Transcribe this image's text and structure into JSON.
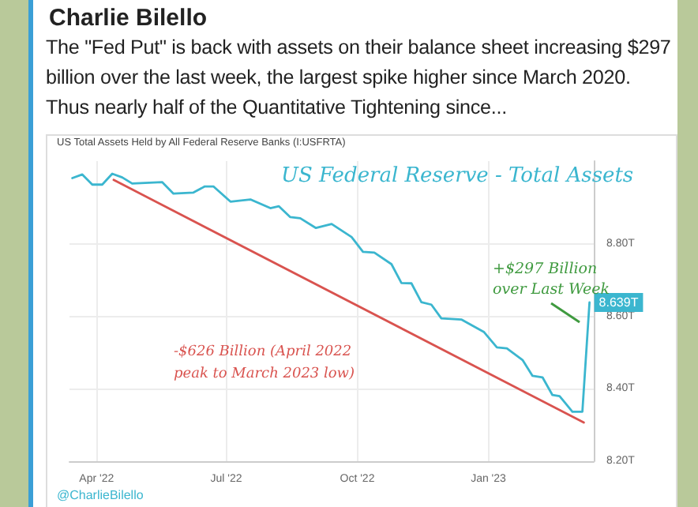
{
  "chart_data": {
    "type": "line",
    "title": "Charlie Bilello",
    "subtitle": "The \"Fed Put\" is back with assets on their balance sheet increasing $297 billion over the last week, the largest spike higher since March 2020. Thus nearly half of the Quantitative Tightening since...",
    "annotations": [
      "US Total Assets Held by All Federal Reserve Banks (I:USFRTA)",
      "US Federal Reserve - Total Assets",
      "-$626 Billion (April 2022 peak to March 2023 low)",
      "+$297 Billion over Last Week",
      "@CharlieBilello"
    ],
    "series": [
      {
        "color": "#3bb6cf",
        "x": [
          "2022-03-15",
          "2022-03-22",
          "2022-03-29",
          "2022-04-05",
          "2022-04-12",
          "2022-04-19",
          "2022-04-26",
          "2022-05-17",
          "2022-05-25",
          "2022-06-08",
          "2022-06-16",
          "2022-06-22",
          "2022-07-04",
          "2022-07-18",
          "2022-08-01",
          "2022-08-07",
          "2022-08-15",
          "2022-08-22",
          "2022-09-02",
          "2022-09-13",
          "2022-09-27",
          "2022-10-05",
          "2022-10-13",
          "2022-10-25",
          "2022-11-01",
          "2022-11-08",
          "2022-11-15",
          "2022-11-22",
          "2022-11-29",
          "2022-12-13",
          "2022-12-29",
          "2023-01-07",
          "2023-01-14",
          "2023-01-25",
          "2023-02-01",
          "2023-02-08",
          "2023-02-15",
          "2023-02-20",
          "2023-03-01",
          "2023-03-08",
          "2023-03-13"
        ],
        "values": [
          8.983,
          8.993,
          8.965,
          8.965,
          8.995,
          8.985,
          8.968,
          8.972,
          8.94,
          8.943,
          8.96,
          8.96,
          8.918,
          8.924,
          8.9,
          8.905,
          8.875,
          8.872,
          8.845,
          8.856,
          8.82,
          8.779,
          8.777,
          8.745,
          8.693,
          8.692,
          8.64,
          8.633,
          8.595,
          8.592,
          8.557,
          8.515,
          8.512,
          8.48,
          8.436,
          8.432,
          8.383,
          8.38,
          8.337,
          8.337,
          8.639
        ],
        "value_labels": [
          null,
          null,
          null,
          null,
          null,
          null,
          null,
          null,
          null,
          null,
          null,
          null,
          null,
          null,
          null,
          null,
          null,
          null,
          null,
          null,
          null,
          null,
          null,
          null,
          null,
          null,
          null,
          null,
          null,
          null,
          null,
          null,
          null,
          null,
          null,
          null,
          null,
          null,
          null,
          null,
          "8.639T"
        ]
      },
      {
        "type": "line",
        "color": "#d9534f",
        "x": [
          "2022-04-13",
          "2023-03-09"
        ],
        "values": [
          8.978,
          8.307
        ]
      }
    ],
    "xlim": [
      "2022-03-13",
      "2023-03-16"
    ],
    "xticks": [
      {
        "value": "2022-04-01",
        "label": "Apr '22"
      },
      {
        "value": "2022-07-01",
        "label": "Jul '22"
      },
      {
        "value": "2022-10-01",
        "label": "Oct '22"
      },
      {
        "value": "2023-01-01",
        "label": "Jan '23"
      }
    ],
    "ylim": [
      8.2,
      9.03
    ],
    "yticks": [
      {
        "value": 8.2,
        "label": "8.20T"
      },
      {
        "value": 8.4,
        "label": "8.40T"
      },
      {
        "value": 8.6,
        "label": "8.60T"
      },
      {
        "value": 8.8,
        "label": "8.80T"
      }
    ],
    "grid": true,
    "marker": "none",
    "line_style": "solid"
  }
}
